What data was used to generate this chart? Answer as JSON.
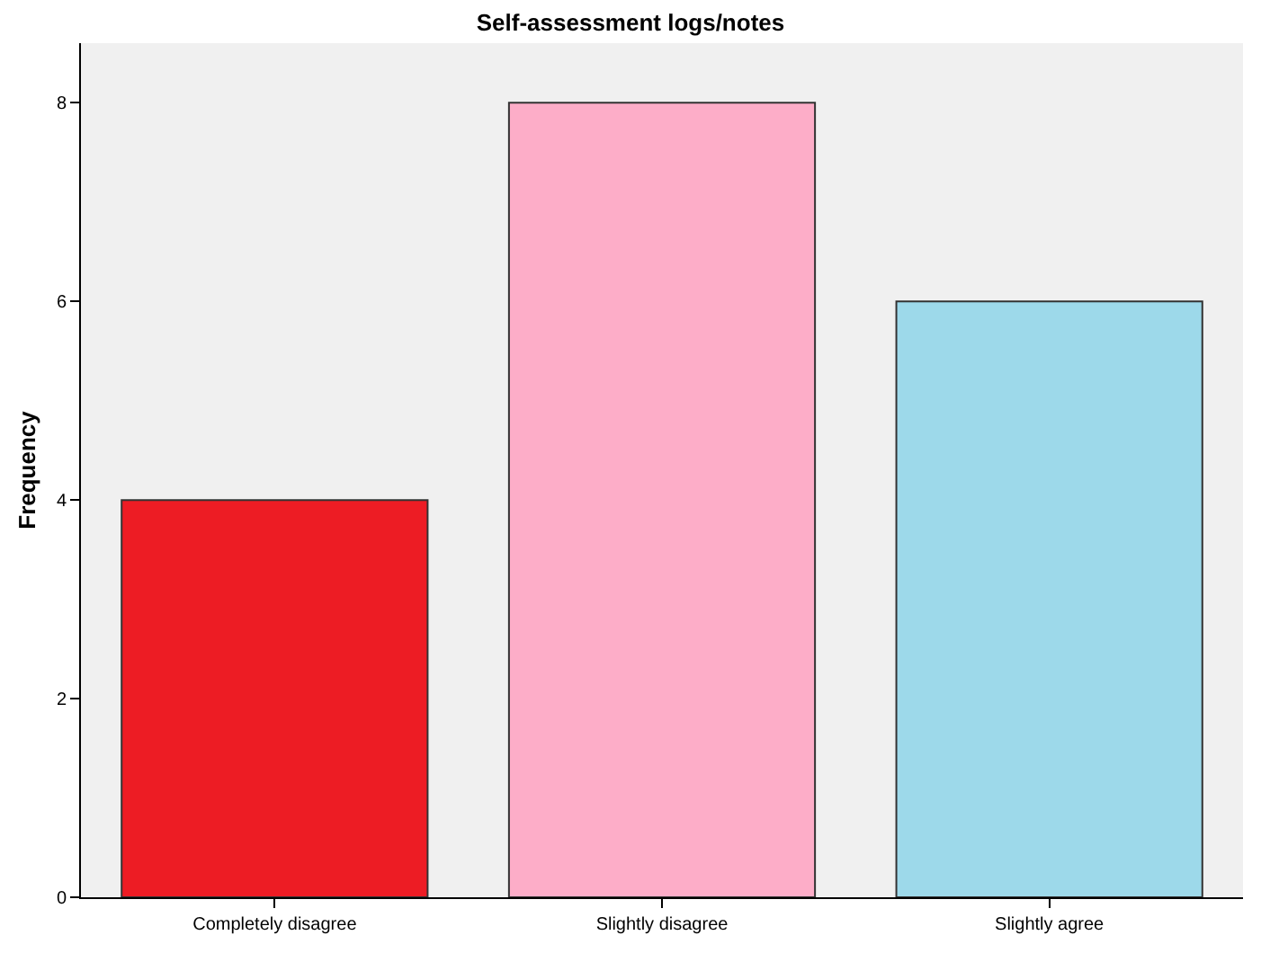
{
  "chart_data": {
    "type": "bar",
    "title": "Self-assessment logs/notes",
    "ylabel": "Frequency",
    "categories": [
      "Completely disagree",
      "Slightly disagree",
      "Slightly agree"
    ],
    "values": [
      4,
      8,
      6
    ],
    "colors": [
      "#ed1c24",
      "#fdadc8",
      "#9dd9ea"
    ],
    "ylim": [
      0,
      8.6
    ],
    "yticks": [
      0,
      2,
      4,
      6,
      8
    ],
    "grid": false
  }
}
